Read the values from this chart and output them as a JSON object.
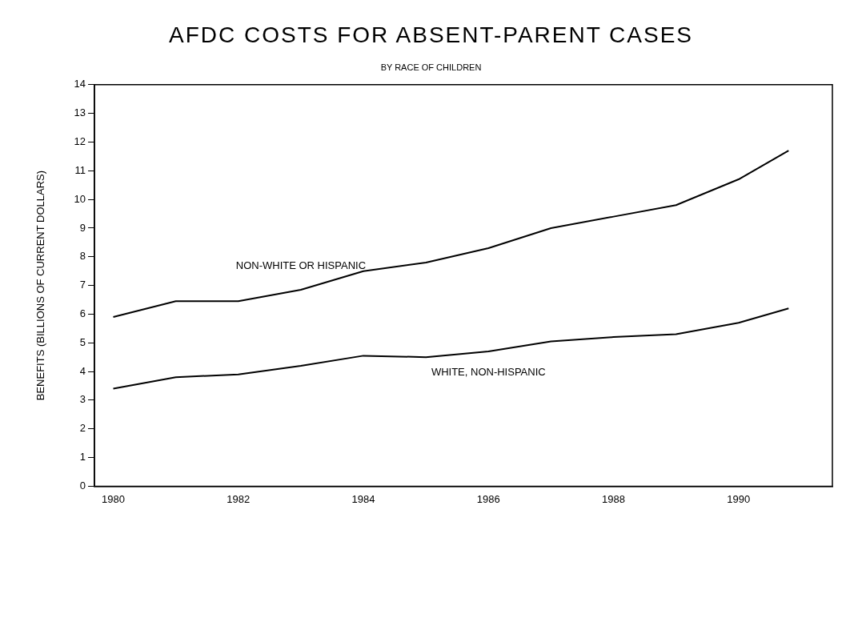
{
  "chart_data": {
    "type": "line",
    "title": "AFDC COSTS FOR ABSENT-PARENT CASES",
    "subtitle": "BY RACE OF CHILDREN",
    "ylabel": "BENEFITS (BILLIONS OF CURRENT DOLLARS)",
    "x": [
      1980,
      1981,
      1982,
      1983,
      1984,
      1985,
      1986,
      1987,
      1988,
      1989,
      1990,
      1990.8
    ],
    "series": [
      {
        "name": "NON-WHITE OR HISPANIC",
        "color": "#000000",
        "values": [
          5.9,
          6.45,
          6.45,
          6.85,
          7.5,
          7.8,
          8.3,
          9.0,
          9.4,
          9.8,
          10.7,
          11.7
        ]
      },
      {
        "name": "WHITE, NON-HISPANIC",
        "color": "#000000",
        "values": [
          3.4,
          3.8,
          3.9,
          4.2,
          4.55,
          4.5,
          4.7,
          5.05,
          5.2,
          5.3,
          5.7,
          6.2
        ]
      }
    ],
    "xlim": [
      1979.7,
      1991.5
    ],
    "xticks": [
      1980,
      1982,
      1984,
      1986,
      1988,
      1990
    ],
    "ylim": [
      0,
      14
    ],
    "yticks": [
      0,
      1,
      2,
      3,
      4,
      5,
      6,
      7,
      8,
      9,
      10,
      11,
      12,
      13,
      14
    ],
    "grid": false,
    "legend": false,
    "marker": "none",
    "line_style": "solid"
  }
}
